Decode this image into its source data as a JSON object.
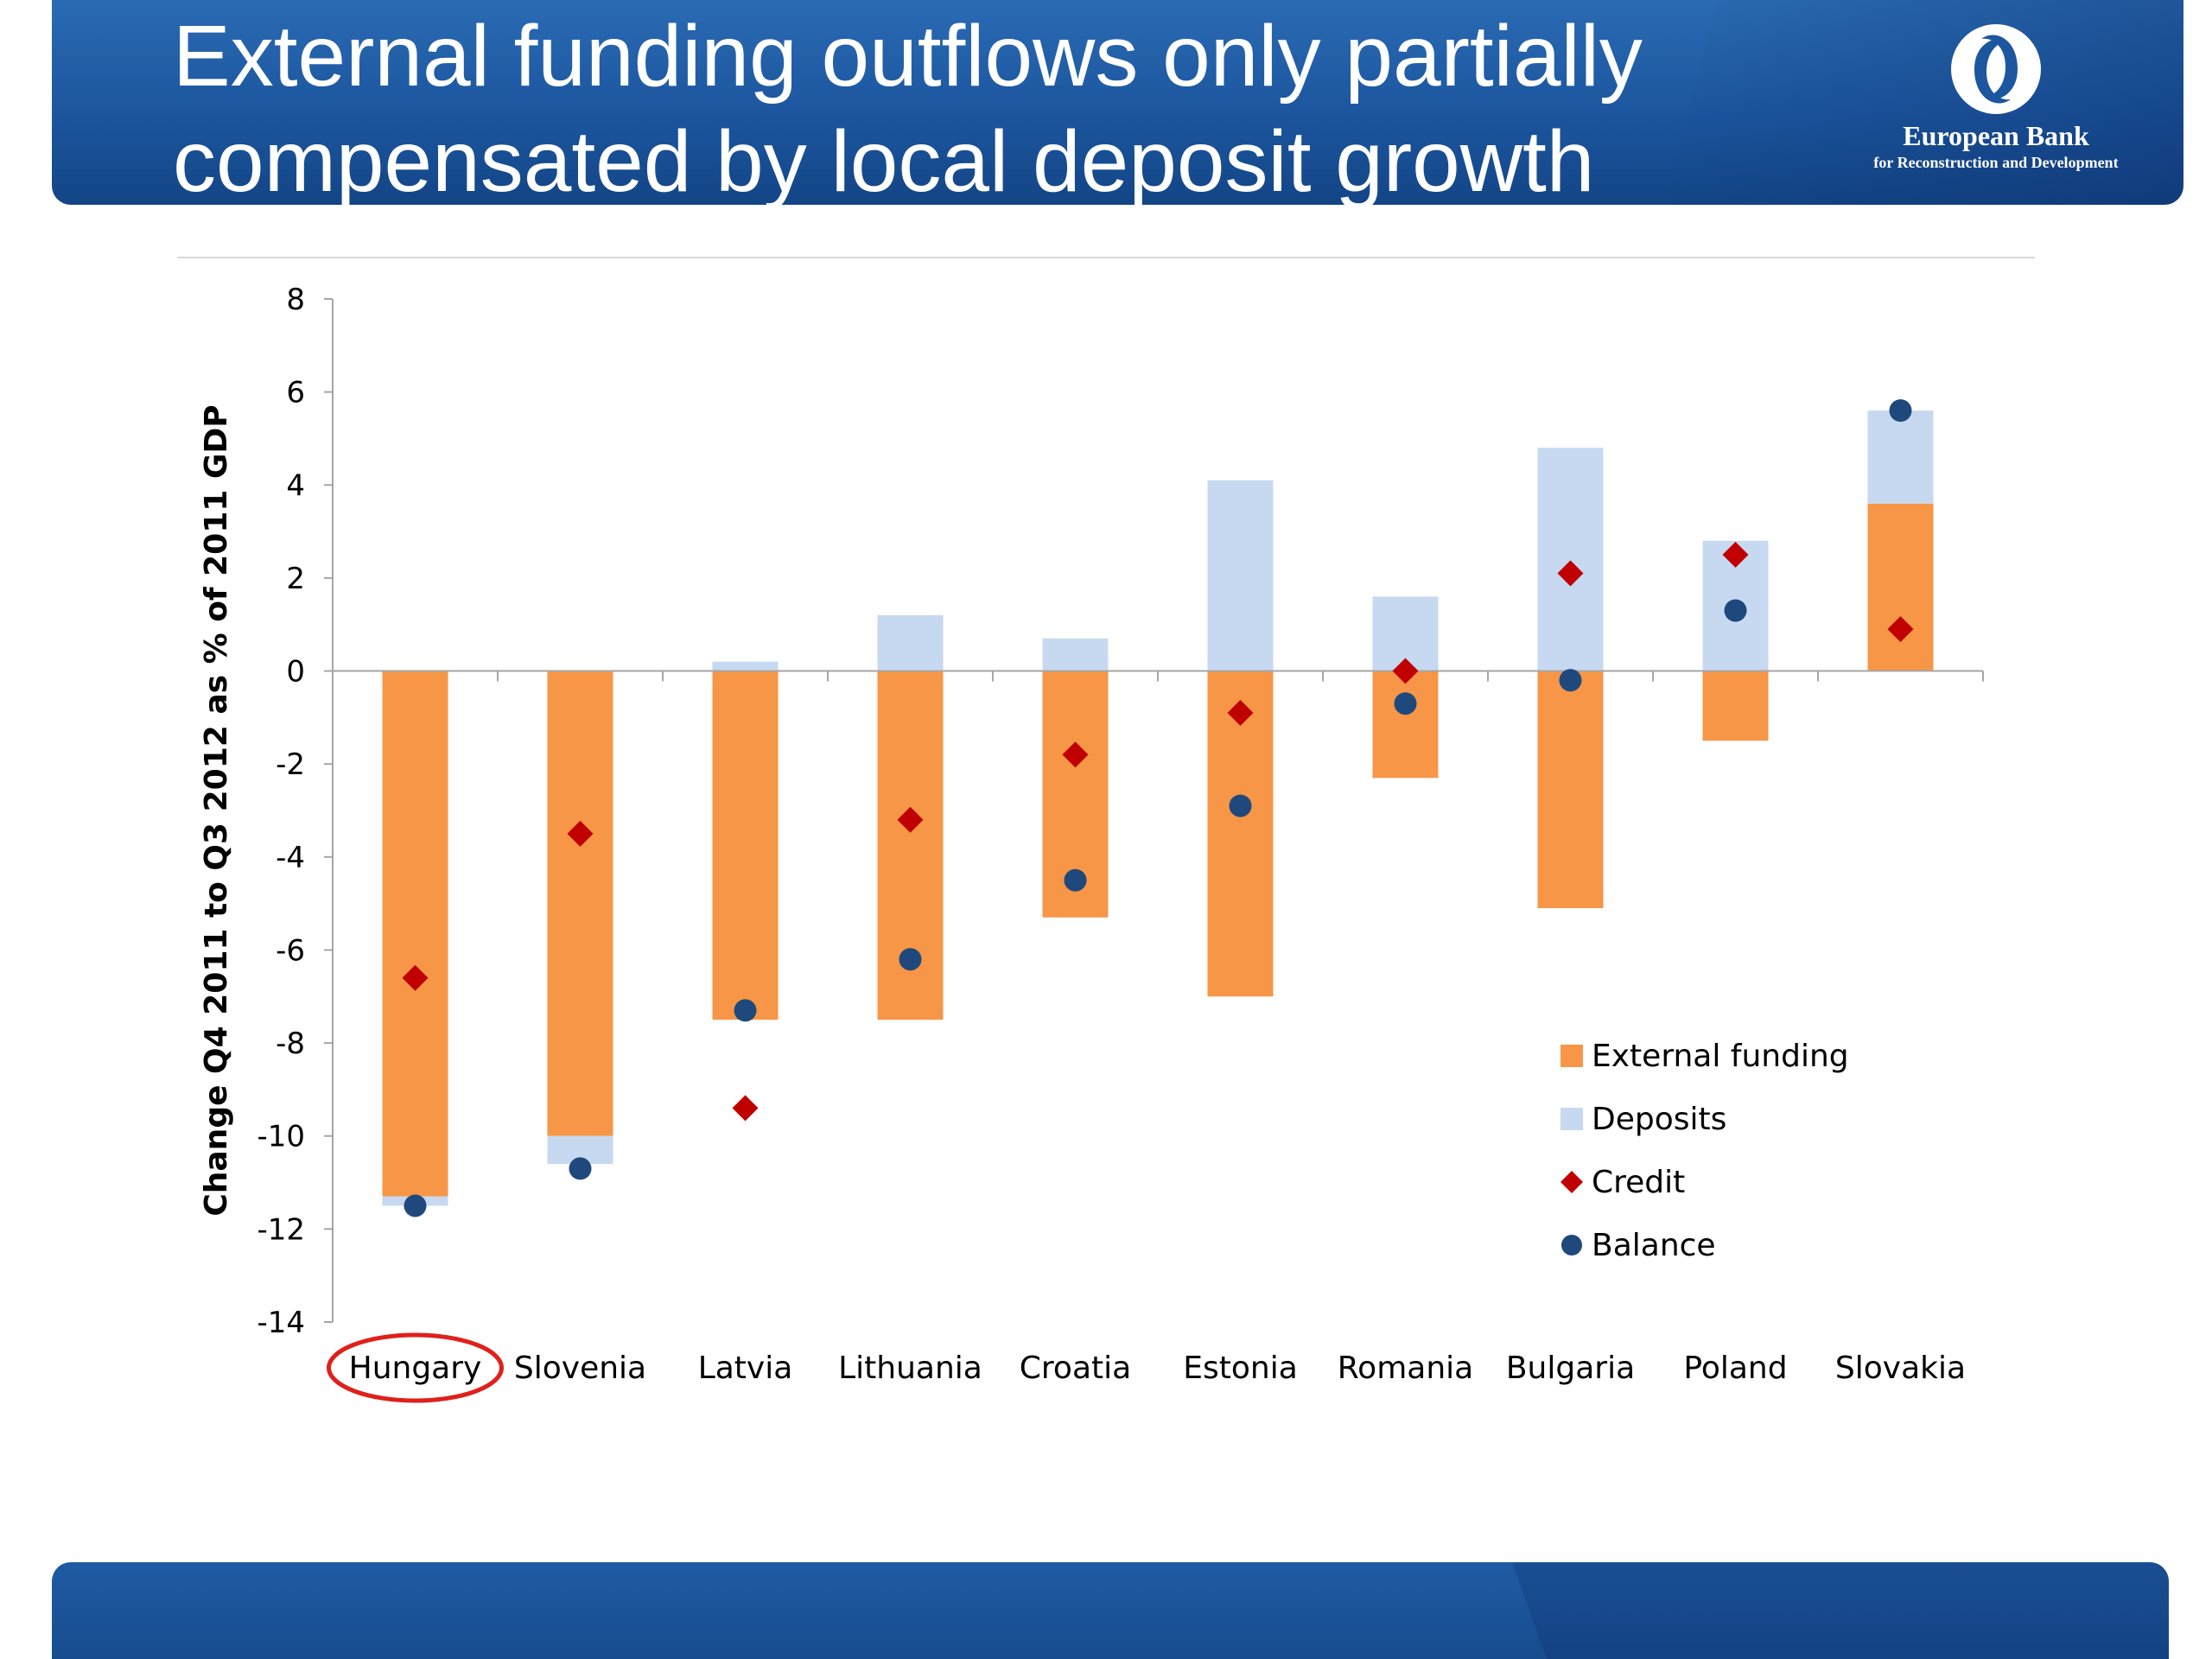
{
  "header": {
    "title_line1": "External funding outflows only partially",
    "title_line2": "compensated by local deposit growth",
    "logo": {
      "icon": "ebrd-logo-icon",
      "name": "European Bank",
      "subtitle": "for Reconstruction and Development"
    },
    "accent_color": "#1c569f"
  },
  "chart_data": {
    "type": "bar",
    "stacked": true,
    "categories": [
      "Hungary",
      "Slovenia",
      "Latvia",
      "Lithuania",
      "Croatia",
      "Estonia",
      "Romania",
      "Bulgaria",
      "Poland",
      "Slovakia"
    ],
    "highlight_category": "Hungary",
    "highlight_color": "#e0201b",
    "ylabel": "Change Q4 2011 to Q3 2012 as % of 2011 GDP",
    "ylim": [
      -14,
      8
    ],
    "yticks": [
      8,
      6,
      4,
      2,
      0,
      -2,
      -4,
      -6,
      -8,
      -10,
      -12,
      -14
    ],
    "grid": false,
    "legend_position": "bottom-right",
    "series": [
      {
        "name": "External funding",
        "kind": "bar",
        "color": "#f79646",
        "values": [
          -11.3,
          -10.0,
          -7.5,
          -7.5,
          -5.3,
          -7.0,
          -2.3,
          -5.1,
          -1.5,
          3.6
        ]
      },
      {
        "name": "Deposits",
        "kind": "bar",
        "color": "#c6d9f1",
        "values": [
          -0.2,
          -0.6,
          0.2,
          1.2,
          0.7,
          4.1,
          1.6,
          4.8,
          2.8,
          2.0
        ]
      },
      {
        "name": "Credit",
        "kind": "diamond",
        "color": "#c00000",
        "values": [
          -6.6,
          -3.5,
          -9.4,
          -3.2,
          -1.8,
          -0.9,
          0.0,
          2.1,
          2.5,
          0.9
        ]
      },
      {
        "name": "Balance",
        "kind": "circle",
        "color": "#1f497d",
        "values": [
          -11.5,
          -10.7,
          -7.3,
          -6.2,
          -4.5,
          -2.9,
          -0.7,
          -0.2,
          1.3,
          5.6
        ]
      }
    ]
  }
}
